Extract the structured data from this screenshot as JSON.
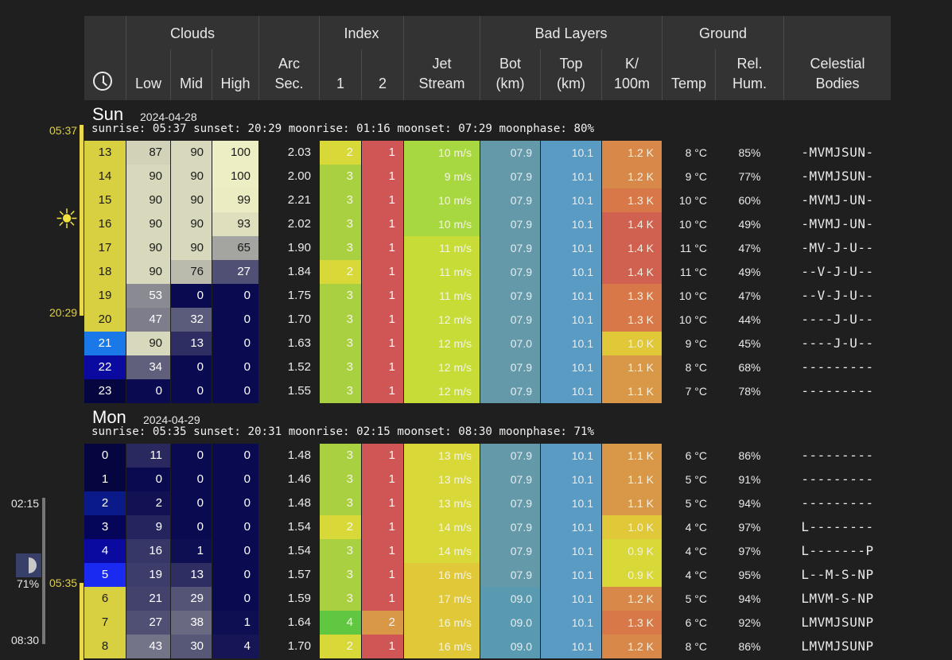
{
  "header": {
    "groups": {
      "clouds": "Clouds",
      "index": "Index",
      "bad_layers": "Bad Layers",
      "ground": "Ground"
    },
    "columns": {
      "low": "Low",
      "mid": "Mid",
      "high": "High",
      "arc1": "Arc",
      "arc2": "Sec.",
      "idx1": "1",
      "idx2": "2",
      "jet1": "Jet",
      "jet2": "Stream",
      "bot1": "Bot",
      "bot2": "(km)",
      "top1": "Top",
      "top2": "(km)",
      "k1": "K/",
      "k2": "100m",
      "temp": "Temp",
      "hum1": "Rel.",
      "hum2": "Hum.",
      "cel1": "Celestial",
      "cel2": "Bodies"
    }
  },
  "days": [
    {
      "name": "Sun",
      "date": "2024-04-28",
      "info": "sunrise: 05:37 sunset: 20:29 moonrise: 01:16 moonset: 07:29 moonphase: 80%",
      "rows": [
        {
          "h": "13",
          "low": "87",
          "mid": "90",
          "high": "100",
          "arc": "2.03",
          "i1": "2",
          "i2": "1",
          "jet": "10 m/s",
          "bot": "07.9",
          "top": "10.1",
          "k": "1.2 K",
          "temp": "8 °C",
          "hum": "85%",
          "cel": "-MVMJSUN-"
        },
        {
          "h": "14",
          "low": "90",
          "mid": "90",
          "high": "100",
          "arc": "2.00",
          "i1": "3",
          "i2": "1",
          "jet": "9 m/s",
          "bot": "07.9",
          "top": "10.1",
          "k": "1.2 K",
          "temp": "9 °C",
          "hum": "77%",
          "cel": "-MVMJSUN-"
        },
        {
          "h": "15",
          "low": "90",
          "mid": "90",
          "high": "99",
          "arc": "2.21",
          "i1": "3",
          "i2": "1",
          "jet": "10 m/s",
          "bot": "07.9",
          "top": "10.1",
          "k": "1.3 K",
          "temp": "10 °C",
          "hum": "60%",
          "cel": "-MVMJ-UN-"
        },
        {
          "h": "16",
          "low": "90",
          "mid": "90",
          "high": "93",
          "arc": "2.02",
          "i1": "3",
          "i2": "1",
          "jet": "10 m/s",
          "bot": "07.9",
          "top": "10.1",
          "k": "1.4 K",
          "temp": "10 °C",
          "hum": "49%",
          "cel": "-MVMJ-UN-"
        },
        {
          "h": "17",
          "low": "90",
          "mid": "90",
          "high": "65",
          "arc": "1.90",
          "i1": "3",
          "i2": "1",
          "jet": "11 m/s",
          "bot": "07.9",
          "top": "10.1",
          "k": "1.4 K",
          "temp": "11 °C",
          "hum": "47%",
          "cel": "-MV-J-U--"
        },
        {
          "h": "18",
          "low": "90",
          "mid": "76",
          "high": "27",
          "arc": "1.84",
          "i1": "2",
          "i2": "1",
          "jet": "11 m/s",
          "bot": "07.9",
          "top": "10.1",
          "k": "1.4 K",
          "temp": "11 °C",
          "hum": "49%",
          "cel": "--V-J-U--"
        },
        {
          "h": "19",
          "low": "53",
          "mid": "0",
          "high": "0",
          "arc": "1.75",
          "i1": "3",
          "i2": "1",
          "jet": "11 m/s",
          "bot": "07.9",
          "top": "10.1",
          "k": "1.3 K",
          "temp": "10 °C",
          "hum": "47%",
          "cel": "--V-J-U--"
        },
        {
          "h": "20",
          "low": "47",
          "mid": "32",
          "high": "0",
          "arc": "1.70",
          "i1": "3",
          "i2": "1",
          "jet": "12 m/s",
          "bot": "07.9",
          "top": "10.1",
          "k": "1.3 K",
          "temp": "10 °C",
          "hum": "44%",
          "cel": "----J-U--"
        },
        {
          "h": "21",
          "low": "90",
          "mid": "13",
          "high": "0",
          "arc": "1.63",
          "i1": "3",
          "i2": "1",
          "jet": "12 m/s",
          "bot": "07.0",
          "top": "10.1",
          "k": "1.0 K",
          "temp": "9 °C",
          "hum": "45%",
          "cel": "----J-U--"
        },
        {
          "h": "22",
          "low": "34",
          "mid": "0",
          "high": "0",
          "arc": "1.52",
          "i1": "3",
          "i2": "1",
          "jet": "12 m/s",
          "bot": "07.9",
          "top": "10.1",
          "k": "1.1 K",
          "temp": "8 °C",
          "hum": "68%",
          "cel": "---------"
        },
        {
          "h": "23",
          "low": "0",
          "mid": "0",
          "high": "0",
          "arc": "1.55",
          "i1": "3",
          "i2": "1",
          "jet": "12 m/s",
          "bot": "07.9",
          "top": "10.1",
          "k": "1.1 K",
          "temp": "7 °C",
          "hum": "78%",
          "cel": "---------"
        }
      ]
    },
    {
      "name": "Mon",
      "date": "2024-04-29",
      "info": "sunrise: 05:35 sunset: 20:31 moonrise: 02:15 moonset: 08:30 moonphase: 71%",
      "rows": [
        {
          "h": "0",
          "low": "11",
          "mid": "0",
          "high": "0",
          "arc": "1.48",
          "i1": "3",
          "i2": "1",
          "jet": "13 m/s",
          "bot": "07.9",
          "top": "10.1",
          "k": "1.1 K",
          "temp": "6 °C",
          "hum": "86%",
          "cel": "---------"
        },
        {
          "h": "1",
          "low": "0",
          "mid": "0",
          "high": "0",
          "arc": "1.46",
          "i1": "3",
          "i2": "1",
          "jet": "13 m/s",
          "bot": "07.9",
          "top": "10.1",
          "k": "1.1 K",
          "temp": "5 °C",
          "hum": "91%",
          "cel": "---------"
        },
        {
          "h": "2",
          "low": "2",
          "mid": "0",
          "high": "0",
          "arc": "1.48",
          "i1": "3",
          "i2": "1",
          "jet": "13 m/s",
          "bot": "07.9",
          "top": "10.1",
          "k": "1.1 K",
          "temp": "5 °C",
          "hum": "94%",
          "cel": "---------"
        },
        {
          "h": "3",
          "low": "9",
          "mid": "0",
          "high": "0",
          "arc": "1.54",
          "i1": "2",
          "i2": "1",
          "jet": "14 m/s",
          "bot": "07.9",
          "top": "10.1",
          "k": "1.0 K",
          "temp": "4 °C",
          "hum": "97%",
          "cel": "L--------"
        },
        {
          "h": "4",
          "low": "16",
          "mid": "1",
          "high": "0",
          "arc": "1.54",
          "i1": "3",
          "i2": "1",
          "jet": "14 m/s",
          "bot": "07.9",
          "top": "10.1",
          "k": "0.9 K",
          "temp": "4 °C",
          "hum": "97%",
          "cel": "L-------P"
        },
        {
          "h": "5",
          "low": "19",
          "mid": "13",
          "high": "0",
          "arc": "1.57",
          "i1": "3",
          "i2": "1",
          "jet": "16 m/s",
          "bot": "07.9",
          "top": "10.1",
          "k": "0.9 K",
          "temp": "4 °C",
          "hum": "95%",
          "cel": "L--M-S-NP"
        },
        {
          "h": "6",
          "low": "21",
          "mid": "29",
          "high": "0",
          "arc": "1.59",
          "i1": "3",
          "i2": "1",
          "jet": "17 m/s",
          "bot": "09.0",
          "top": "10.1",
          "k": "1.2 K",
          "temp": "5 °C",
          "hum": "94%",
          "cel": "LMVM-S-NP"
        },
        {
          "h": "7",
          "low": "27",
          "mid": "38",
          "high": "1",
          "arc": "1.64",
          "i1": "4",
          "i2": "2",
          "jet": "16 m/s",
          "bot": "09.0",
          "top": "10.1",
          "k": "1.3 K",
          "temp": "6 °C",
          "hum": "92%",
          "cel": "LMVMJSUNP"
        },
        {
          "h": "8",
          "low": "43",
          "mid": "30",
          "high": "4",
          "arc": "1.70",
          "i1": "2",
          "i2": "1",
          "jet": "16 m/s",
          "bot": "09.0",
          "top": "10.1",
          "k": "1.2 K",
          "temp": "8 °C",
          "hum": "86%",
          "cel": "LMVMJSUNP"
        }
      ]
    }
  ],
  "side": {
    "sunrise1": "05:37",
    "sunset1": "20:29",
    "moonrise2": "02:15",
    "moonphase2": "71%",
    "sunrise2": "05:35",
    "moonset2": "08:30"
  },
  "icons": {
    "clock": "clock-icon",
    "sun": "sun-icon",
    "moon": "moon-phase-icon"
  },
  "colors": {
    "page_bg": "#1f1f1f",
    "header_bg": "#333333",
    "hour_day": "#d8d040",
    "hour_twilight": "#1a78e8",
    "cloud_clear": "#0a0a50",
    "cloud_full": "#d8d8bc",
    "bot_layer": "#6399a8",
    "top_layer": "#5a9bc4",
    "idx_red": "#d05656",
    "idx_orange": "#d87840",
    "accent_yellow": "#e0d040"
  }
}
